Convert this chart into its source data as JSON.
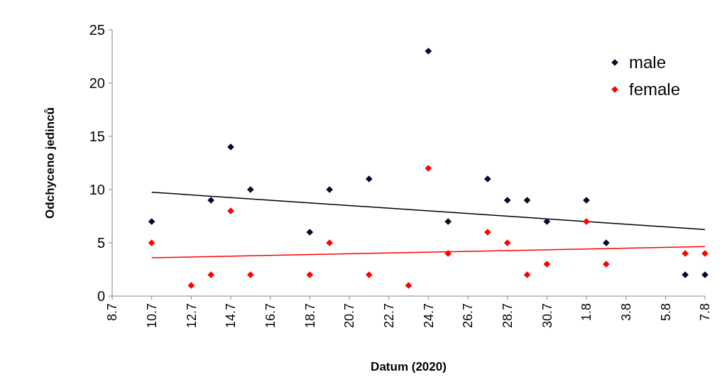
{
  "chart_data": {
    "type": "scatter",
    "xlabel": "Datum (2020)",
    "ylabel": "Odchyceno jedinců",
    "xlim": [
      "2020-07-08",
      "2020-08-07"
    ],
    "xticks": [
      {
        "value": "2020-07-08",
        "label": "8.7"
      },
      {
        "value": "2020-07-10",
        "label": "10.7"
      },
      {
        "value": "2020-07-12",
        "label": "12.7"
      },
      {
        "value": "2020-07-14",
        "label": "14.7"
      },
      {
        "value": "2020-07-16",
        "label": "16.7"
      },
      {
        "value": "2020-07-18",
        "label": "18.7"
      },
      {
        "value": "2020-07-20",
        "label": "20.7"
      },
      {
        "value": "2020-07-22",
        "label": "22.7"
      },
      {
        "value": "2020-07-24",
        "label": "24.7"
      },
      {
        "value": "2020-07-26",
        "label": "26.7"
      },
      {
        "value": "2020-07-28",
        "label": "28.7"
      },
      {
        "value": "2020-07-30",
        "label": "30.7"
      },
      {
        "value": "2020-08-01",
        "label": "1.8"
      },
      {
        "value": "2020-08-03",
        "label": "3.8"
      },
      {
        "value": "2020-08-05",
        "label": "5.8"
      },
      {
        "value": "2020-08-07",
        "label": "7.8"
      }
    ],
    "ylim": [
      0,
      25
    ],
    "yticks": [
      0,
      5,
      10,
      15,
      20,
      25
    ],
    "grid": false,
    "legend": "top right",
    "marker": "diamond",
    "series": [
      {
        "name": "male",
        "color": "#000d26",
        "x": [
          "2020-07-10",
          "2020-07-13",
          "2020-07-14",
          "2020-07-15",
          "2020-07-18",
          "2020-07-19",
          "2020-07-21",
          "2020-07-24",
          "2020-07-25",
          "2020-07-27",
          "2020-07-28",
          "2020-07-29",
          "2020-07-30",
          "2020-08-01",
          "2020-08-02",
          "2020-08-06",
          "2020-08-07"
        ],
        "values": [
          7,
          9,
          14,
          10,
          6,
          10,
          11,
          23,
          7,
          11,
          9,
          9,
          7,
          9,
          5,
          2,
          2
        ]
      },
      {
        "name": "female",
        "color": "#ff0000",
        "x": [
          "2020-07-10",
          "2020-07-12",
          "2020-07-13",
          "2020-07-14",
          "2020-07-15",
          "2020-07-18",
          "2020-07-19",
          "2020-07-21",
          "2020-07-23",
          "2020-07-24",
          "2020-07-25",
          "2020-07-27",
          "2020-07-28",
          "2020-07-29",
          "2020-07-30",
          "2020-08-01",
          "2020-08-02",
          "2020-08-06",
          "2020-08-07"
        ],
        "values": [
          5,
          1,
          2,
          8,
          2,
          2,
          5,
          2,
          1,
          12,
          4,
          6,
          5,
          2,
          3,
          7,
          3,
          4,
          4
        ]
      },
      {
        "type": "line",
        "marker": "none",
        "color": "#000000",
        "x": [
          "2020-07-10",
          "2020-08-07"
        ],
        "values": [
          9.75,
          6.25
        ]
      },
      {
        "type": "line",
        "marker": "none",
        "color": "#ff0000",
        "x": [
          "2020-07-10",
          "2020-08-07"
        ],
        "values": [
          3.6,
          4.65
        ]
      }
    ]
  }
}
